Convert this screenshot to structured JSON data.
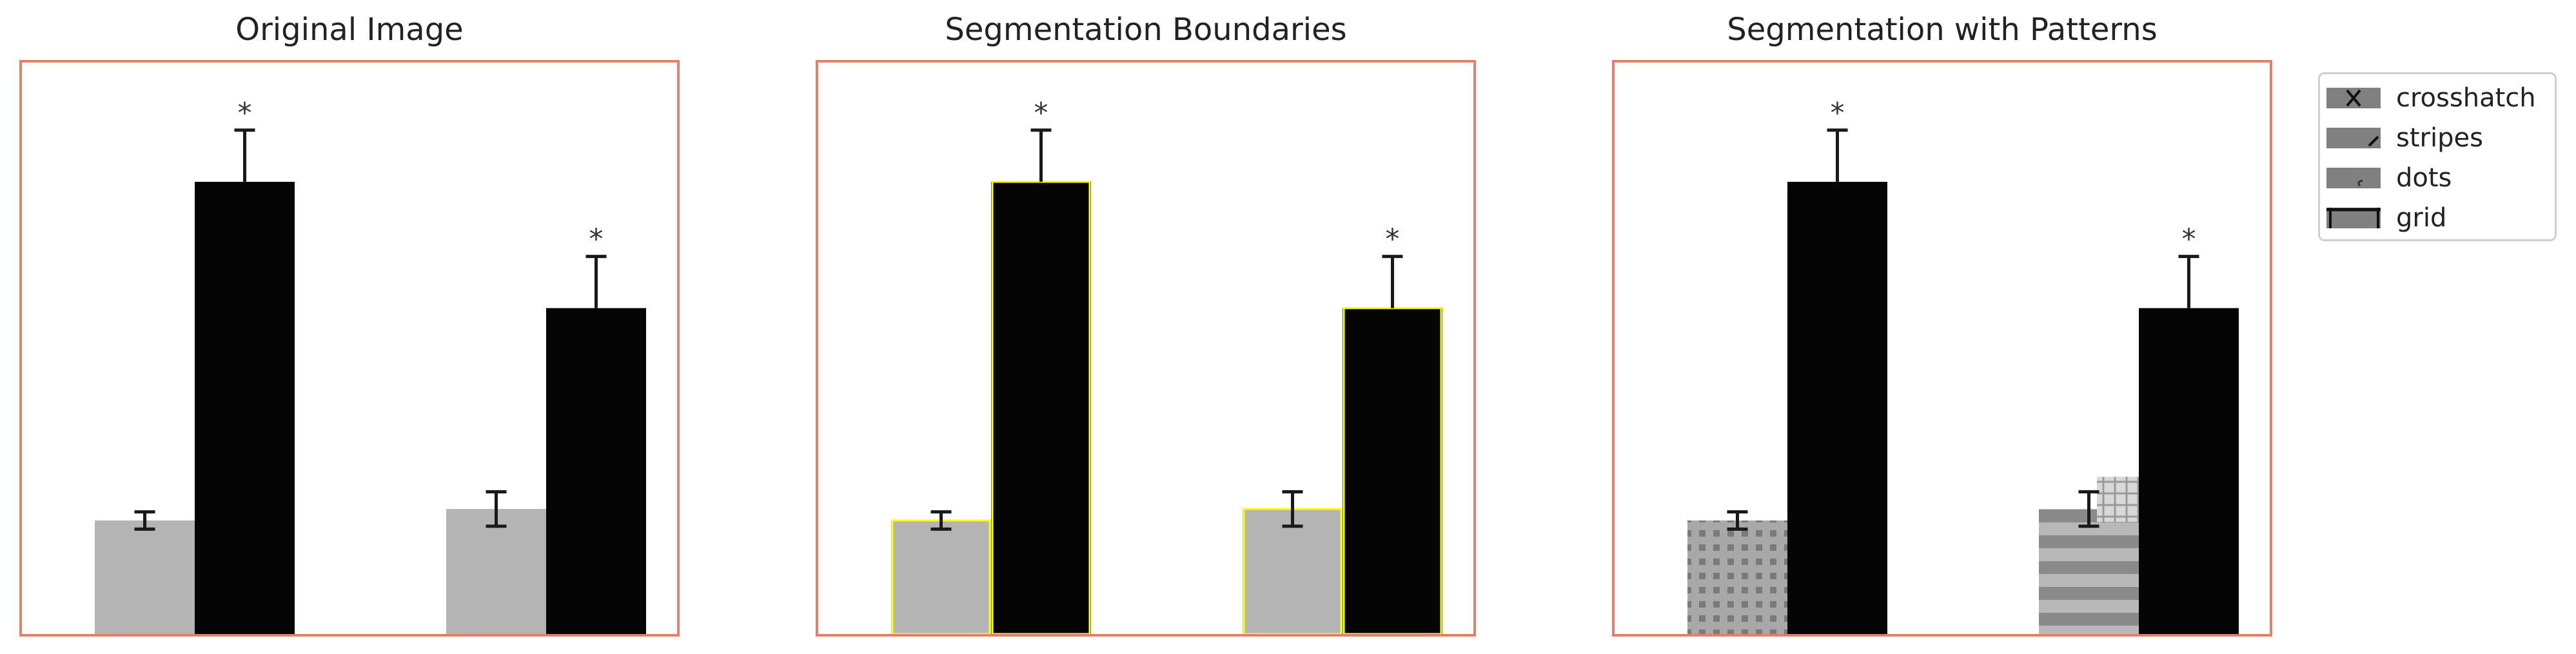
{
  "panels": [
    {
      "title": "Original Image"
    },
    {
      "title": "Segmentation Boundaries"
    },
    {
      "title": "Segmentation with Patterns"
    }
  ],
  "legend": {
    "items": [
      {
        "label": "crosshatch",
        "pattern": "crosshatch"
      },
      {
        "label": "stripes",
        "pattern": "stripes"
      },
      {
        "label": "dots",
        "pattern": "dots"
      },
      {
        "label": "grid",
        "pattern": "grid"
      }
    ]
  },
  "chart_data": {
    "type": "bar",
    "categories": [
      "",
      ""
    ],
    "series": [
      {
        "values": [
          0.2,
          0.22
        ],
        "errors": [
          0.015,
          0.03
        ],
        "color": "#b4b4b4"
      },
      {
        "values": [
          0.79,
          0.57
        ],
        "errors": [
          0.09,
          0.09
        ],
        "color": "#050505"
      }
    ],
    "significance": [
      "*",
      "*"
    ],
    "ylim": [
      0,
      1
    ],
    "frame_color": "#e0806f",
    "boundary_color": "#ffff00"
  }
}
